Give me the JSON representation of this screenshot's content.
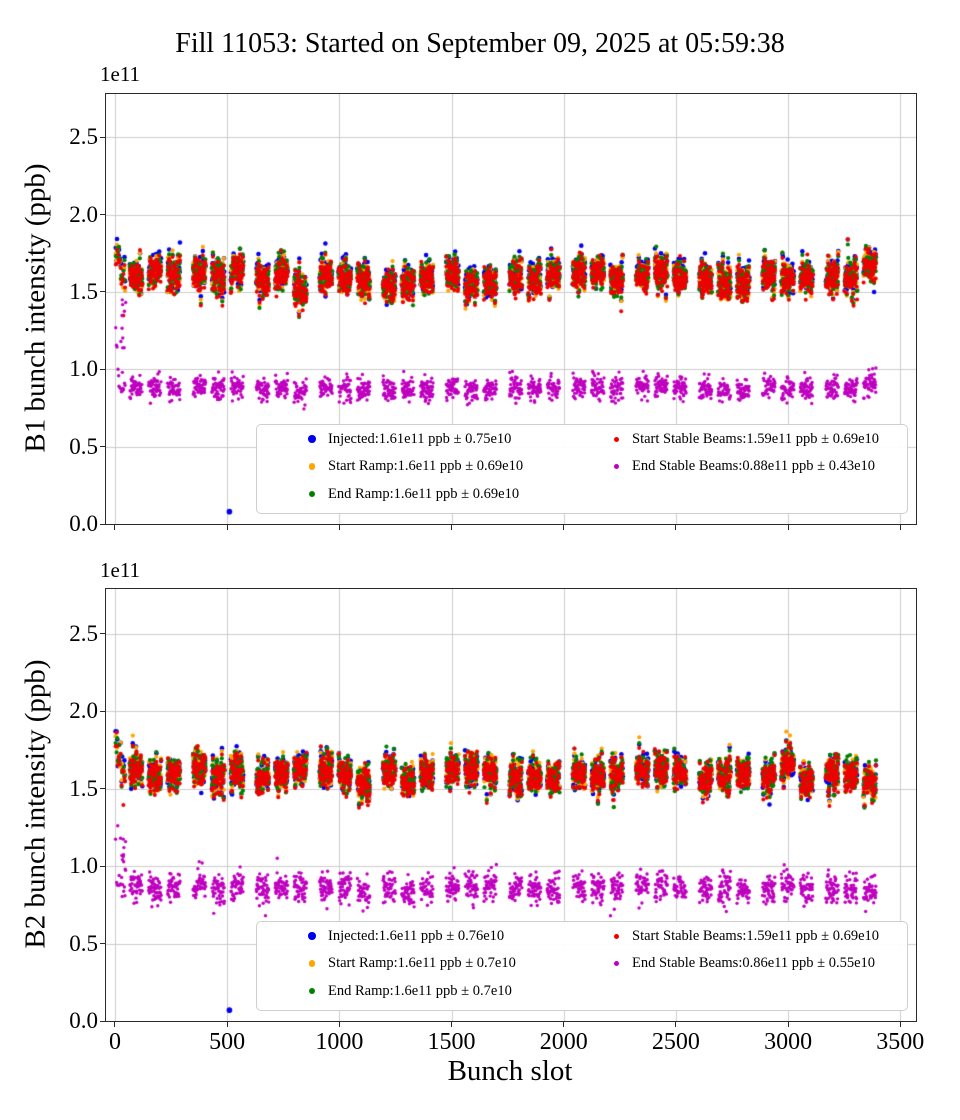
{
  "title": "Fill 11053: Started on September 09, 2025 at 05:59:38",
  "xlabel": "Bunch slot",
  "background": "#ffffff",
  "grid_color": "#cccccc",
  "spine_color": "#2a2a2a",
  "chart_data": [
    {
      "type": "scatter",
      "name": "B1",
      "ylabel": "B1 bunch intensity (ppb)",
      "offset_text": "1e11",
      "xlim": [
        -40,
        3570
      ],
      "ylim": [
        0,
        2.78
      ],
      "xticks": [
        0,
        500,
        1000,
        1500,
        2000,
        2500,
        3000,
        3500
      ],
      "yticks": [
        "0.0",
        "0.5",
        "1.0",
        "1.5",
        "2.0",
        "2.5"
      ],
      "grid": true,
      "legend_position": "lower center",
      "bunch_slot_range": [
        0,
        3450
      ],
      "series": [
        {
          "name": "Injected",
          "label": "Injected:1.61e11 ppb ± 0.75e10",
          "color": "#0000ee",
          "mean_e11": 1.61,
          "sigma_e11": 0.075
        },
        {
          "name": "Start Ramp",
          "label": "Start Ramp:1.6e11 ppb ± 0.69e10",
          "color": "#ffa500",
          "mean_e11": 1.6,
          "sigma_e11": 0.069
        },
        {
          "name": "End Ramp",
          "label": "End Ramp:1.6e11 ppb ± 0.69e10",
          "color": "#008000",
          "mean_e11": 1.6,
          "sigma_e11": 0.069
        },
        {
          "name": "Start Stable Beams",
          "label": "Start Stable Beams:1.59e11 ppb ± 0.69e10",
          "color": "#ee0000",
          "mean_e11": 1.59,
          "sigma_e11": 0.069
        },
        {
          "name": "End Stable Beams",
          "label": "End Stable Beams:0.88e11 ppb ± 0.43e10",
          "color": "#bf00bf",
          "mean_e11": 0.88,
          "sigma_e11": 0.043
        }
      ],
      "outlier": {
        "series": "Injected",
        "x": 510,
        "y_e11": 0.08
      }
    },
    {
      "type": "scatter",
      "name": "B2",
      "ylabel": "B2 bunch intensity (ppb)",
      "offset_text": "1e11",
      "xlim": [
        -40,
        3570
      ],
      "ylim": [
        0,
        2.79
      ],
      "xticks": [
        0,
        500,
        1000,
        1500,
        2000,
        2500,
        3000,
        3500
      ],
      "yticks": [
        "0.0",
        "0.5",
        "1.0",
        "1.5",
        "2.0",
        "2.5"
      ],
      "grid": true,
      "legend_position": "lower center",
      "bunch_slot_range": [
        0,
        3450
      ],
      "series": [
        {
          "name": "Injected",
          "label": "Injected:1.6e11 ppb ± 0.76e10",
          "color": "#0000ee",
          "mean_e11": 1.6,
          "sigma_e11": 0.076
        },
        {
          "name": "Start Ramp",
          "label": "Start Ramp:1.6e11 ppb ± 0.7e10",
          "color": "#ffa500",
          "mean_e11": 1.6,
          "sigma_e11": 0.07
        },
        {
          "name": "End Ramp",
          "label": "End Ramp:1.6e11 ppb ± 0.7e10",
          "color": "#008000",
          "mean_e11": 1.6,
          "sigma_e11": 0.07
        },
        {
          "name": "Start Stable Beams",
          "label": "Start Stable Beams:1.59e11 ppb ± 0.69e10",
          "color": "#ee0000",
          "mean_e11": 1.59,
          "sigma_e11": 0.069
        },
        {
          "name": "End Stable Beams",
          "label": "End Stable Beams:0.86e11 ppb ± 0.55e10",
          "color": "#bf00bf",
          "mean_e11": 0.86,
          "sigma_e11": 0.055
        }
      ],
      "outlier": {
        "series": "Injected",
        "x": 510,
        "y_e11": 0.07
      }
    }
  ]
}
